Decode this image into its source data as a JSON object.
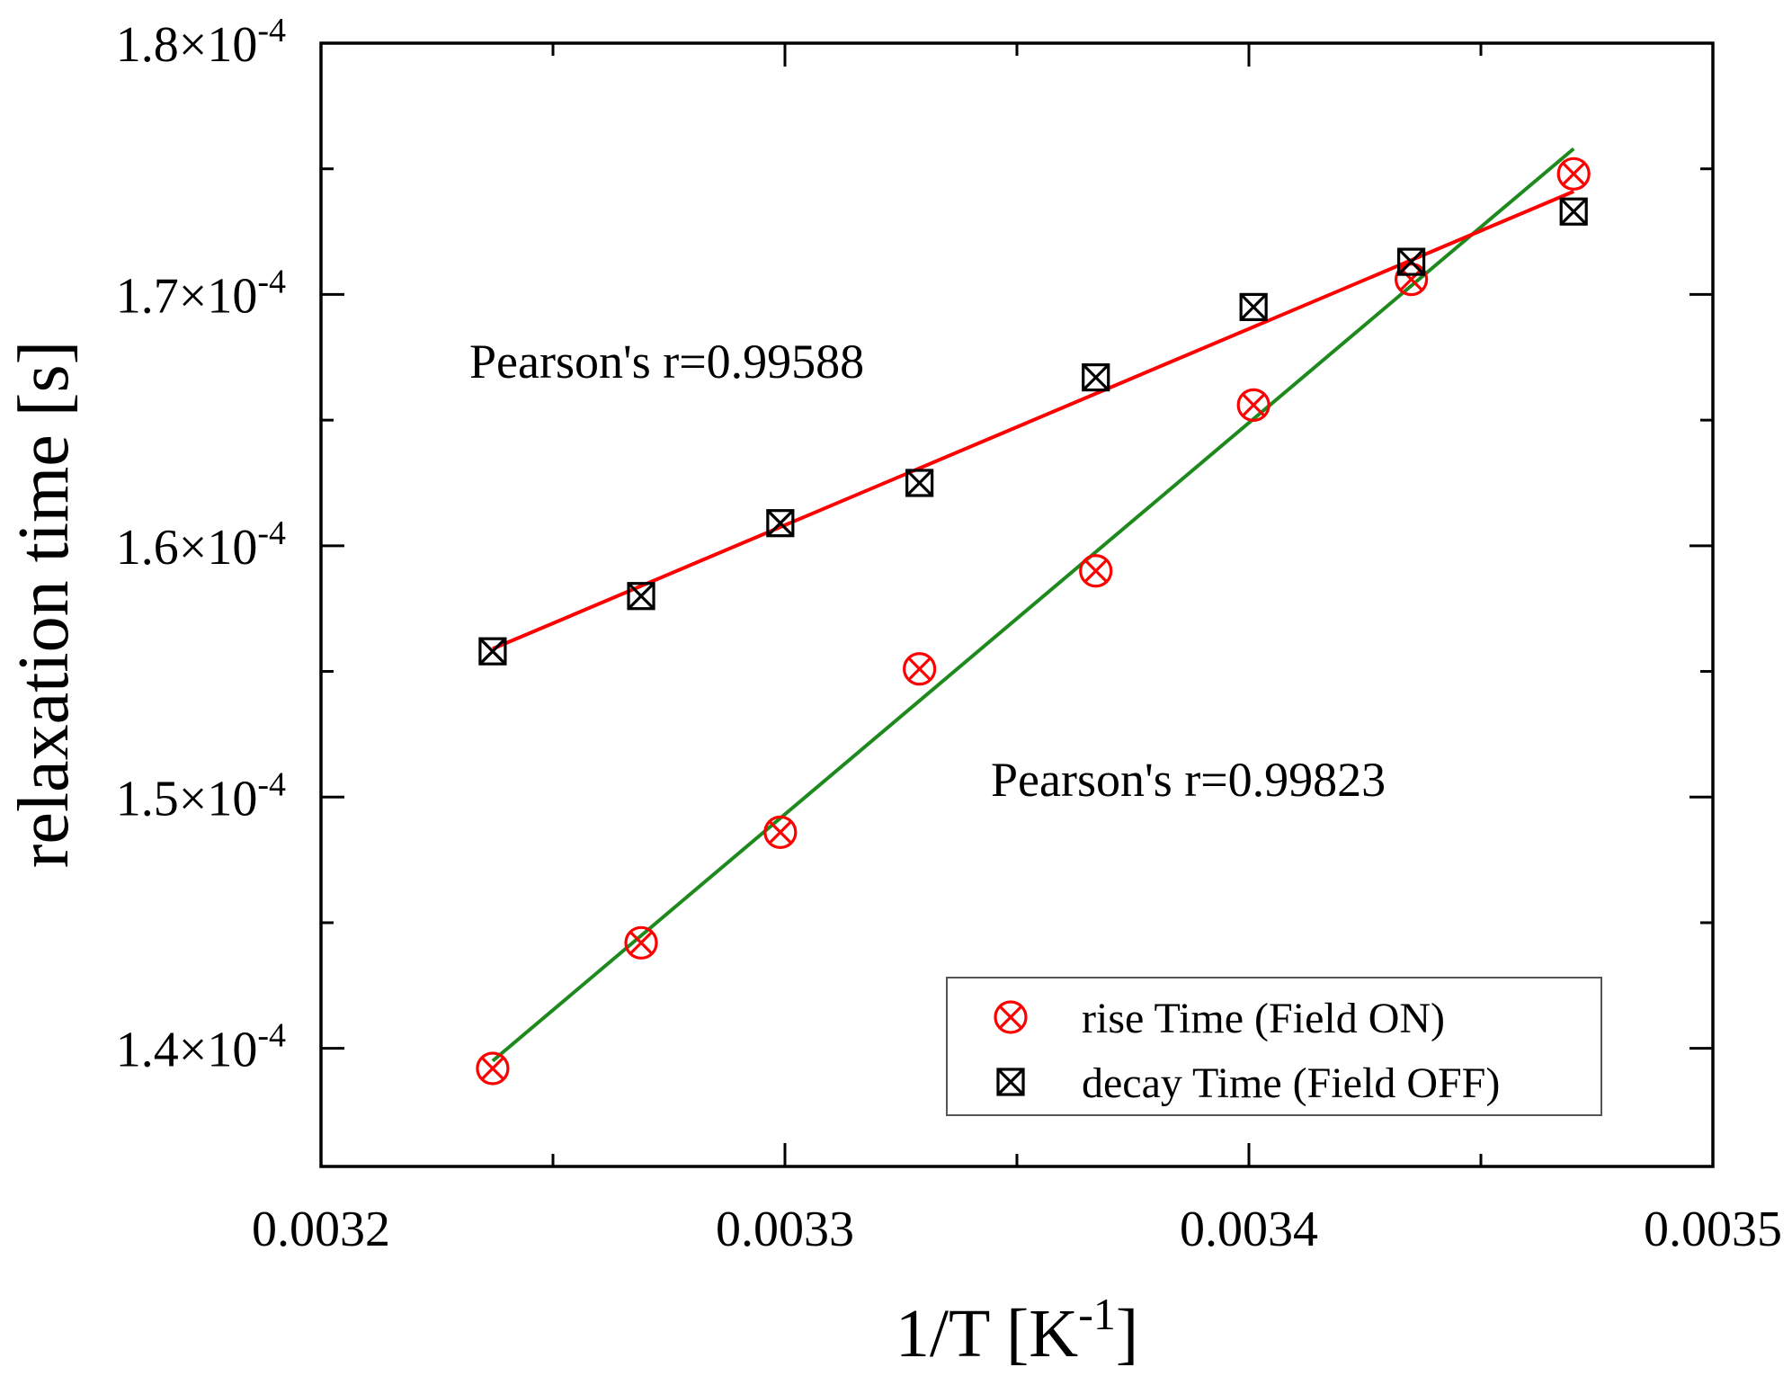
{
  "chart_data": {
    "type": "scatter",
    "title": "",
    "xlabel": {
      "main": "1/T [K",
      "sup": "-1",
      "end": "]"
    },
    "ylabel": "relaxation time [s]",
    "xlim": [
      0.0032,
      0.0035
    ],
    "ylim": [
      0.0001353,
      0.00018
    ],
    "x_ticks": [
      {
        "value": 0.0032,
        "label": "0.0032"
      },
      {
        "value": 0.0033,
        "label": "0.0033"
      },
      {
        "value": 0.0034,
        "label": "0.0034"
      },
      {
        "value": 0.0035,
        "label": "0.0035"
      }
    ],
    "x_minor_ticks": [
      0.00325,
      0.00335,
      0.00345
    ],
    "y_ticks": [
      {
        "value": 0.00014,
        "mantissa": "1.4×10",
        "exp": "-4"
      },
      {
        "value": 0.00015,
        "mantissa": "1.5×10",
        "exp": "-4"
      },
      {
        "value": 0.00016,
        "mantissa": "1.6×10",
        "exp": "-4"
      },
      {
        "value": 0.00017,
        "mantissa": "1.7×10",
        "exp": "-4"
      },
      {
        "value": 0.00018,
        "mantissa": "1.8×10",
        "exp": "-4"
      }
    ],
    "y_minor_ticks": [
      0.000145,
      0.000155,
      0.000165,
      0.000175
    ],
    "series": [
      {
        "name": "rise Time (Field ON)",
        "marker": "circle-x",
        "color": "#ff0000",
        "fit_color": "#1e8a1e",
        "x": [
          0.003237,
          0.003269,
          0.003299,
          0.003329,
          0.003367,
          0.003401,
          0.003435,
          0.00347
        ],
        "y": [
          0.0001392,
          0.0001442,
          0.0001486,
          0.0001551,
          0.000159,
          0.0001656,
          0.0001706,
          0.0001748
        ],
        "fit": {
          "x": [
            0.003237,
            0.00347
          ],
          "y": [
            0.0001395,
            0.0001758
          ]
        },
        "annotation": "Pearson's r=0.99823"
      },
      {
        "name": "decay Time (Field OFF)",
        "marker": "square-x",
        "color": "#000000",
        "fit_color": "#ff0000",
        "x": [
          0.003237,
          0.003269,
          0.003299,
          0.003329,
          0.003367,
          0.003401,
          0.003435,
          0.00347
        ],
        "y": [
          0.0001558,
          0.000158,
          0.0001609,
          0.0001625,
          0.0001667,
          0.0001695,
          0.0001713,
          0.0001733
        ],
        "fit": {
          "x": [
            0.003237,
            0.00347
          ],
          "y": [
            0.0001559,
            0.0001741
          ]
        },
        "annotation": "Pearson's r=0.99588"
      }
    ],
    "legend": {
      "position": "bottom-right",
      "entries": [
        "rise Time (Field ON)",
        "decay Time (Field OFF)"
      ]
    }
  }
}
